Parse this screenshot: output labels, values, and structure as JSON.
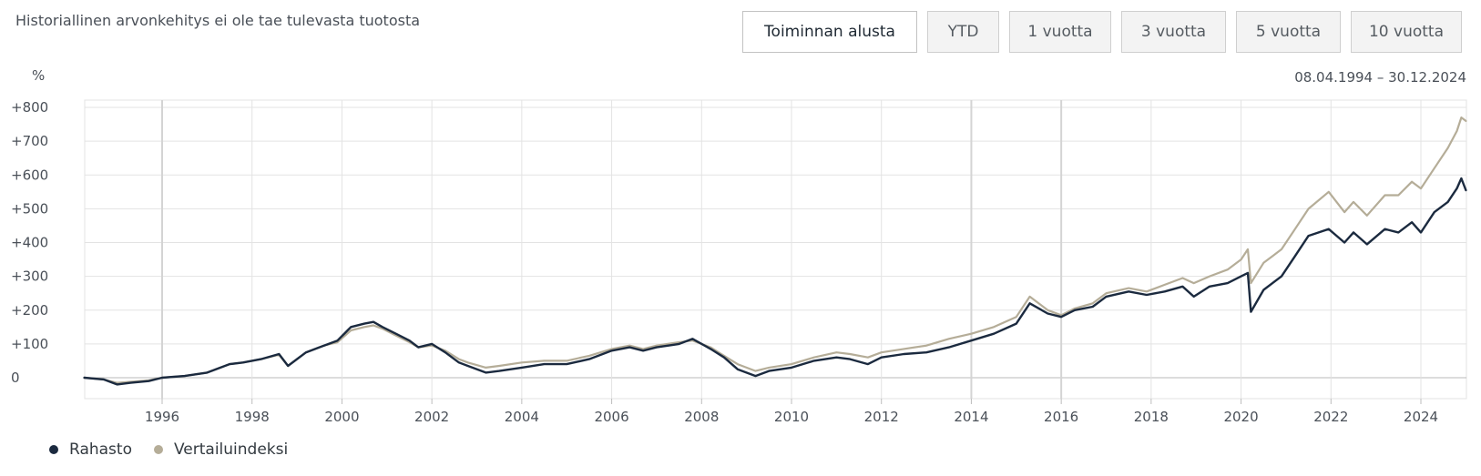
{
  "header": {
    "disclaimer": "Historiallinen arvonkehitys ei ole tae tulevasta tuotosta",
    "unit": "%",
    "period": "08.04.1994 – 30.12.2024"
  },
  "range_buttons": [
    {
      "label": "Toiminnan alusta",
      "active": true
    },
    {
      "label": "YTD",
      "active": false
    },
    {
      "label": "1 vuotta",
      "active": false
    },
    {
      "label": "3 vuotta",
      "active": false
    },
    {
      "label": "5 vuotta",
      "active": false
    },
    {
      "label": "10 vuotta",
      "active": false
    }
  ],
  "legend": [
    {
      "label": "Rahasto",
      "color": "#1b2a3f"
    },
    {
      "label": "Vertailuindeksi",
      "color": "#b5ad98"
    }
  ],
  "chart_data": {
    "type": "line",
    "title": "",
    "xlabel": "",
    "ylabel": "%",
    "xlim": [
      1994.27,
      2025.0
    ],
    "ylim": [
      -60,
      830
    ],
    "y_ticks": [
      0,
      100,
      200,
      300,
      400,
      500,
      600,
      700,
      800
    ],
    "y_tick_labels": [
      "0",
      "+100",
      "+200",
      "+300",
      "+400",
      "+500",
      "+600",
      "+700",
      "+800"
    ],
    "x_ticks": [
      1996,
      1998,
      2000,
      2002,
      2004,
      2006,
      2008,
      2010,
      2012,
      2014,
      2016,
      2018,
      2020,
      2022,
      2024
    ],
    "x_tick_labels": [
      "1996",
      "1998",
      "2000",
      "2002",
      "2004",
      "2006",
      "2008",
      "2010",
      "2012",
      "2014",
      "2016",
      "2018",
      "2020",
      "2022",
      "2024"
    ],
    "grid": true,
    "legend_position": "bottom-left",
    "series": [
      {
        "name": "Rahasto",
        "color": "#1b2a3f",
        "x": [
          1994.27,
          1994.7,
          1995.0,
          1995.3,
          1995.7,
          1996.0,
          1996.5,
          1997.0,
          1997.5,
          1997.8,
          1998.2,
          1998.6,
          1998.8,
          1999.2,
          1999.6,
          1999.9,
          2000.2,
          2000.5,
          2000.7,
          2000.9,
          2001.2,
          2001.5,
          2001.7,
          2002.0,
          2002.3,
          2002.6,
          2002.8,
          2003.2,
          2003.5,
          2004.0,
          2004.5,
          2005.0,
          2005.5,
          2006.0,
          2006.4,
          2006.7,
          2007.0,
          2007.5,
          2007.8,
          2008.2,
          2008.5,
          2008.8,
          2009.2,
          2009.5,
          2010.0,
          2010.5,
          2011.0,
          2011.3,
          2011.7,
          2012.0,
          2012.5,
          2013.0,
          2013.5,
          2014.0,
          2014.5,
          2015.0,
          2015.3,
          2015.7,
          2016.0,
          2016.3,
          2016.7,
          2017.0,
          2017.5,
          2017.9,
          2018.3,
          2018.7,
          2018.95,
          2019.3,
          2019.7,
          2020.0,
          2020.15,
          2020.22,
          2020.5,
          2020.9,
          2021.2,
          2021.5,
          2021.95,
          2022.3,
          2022.5,
          2022.8,
          2023.2,
          2023.5,
          2023.8,
          2024.0,
          2024.3,
          2024.6,
          2024.8,
          2024.9,
          2025.0
        ],
        "values": [
          0,
          -5,
          -20,
          -15,
          -10,
          0,
          5,
          15,
          40,
          45,
          55,
          70,
          35,
          75,
          95,
          110,
          150,
          160,
          165,
          150,
          130,
          110,
          90,
          100,
          75,
          45,
          35,
          15,
          20,
          30,
          40,
          40,
          55,
          80,
          90,
          80,
          90,
          100,
          115,
          85,
          60,
          25,
          5,
          20,
          30,
          50,
          60,
          55,
          40,
          60,
          70,
          75,
          90,
          110,
          130,
          160,
          220,
          190,
          180,
          200,
          210,
          240,
          255,
          245,
          255,
          270,
          240,
          270,
          280,
          300,
          310,
          195,
          260,
          300,
          360,
          420,
          440,
          400,
          430,
          395,
          440,
          430,
          460,
          430,
          490,
          520,
          560,
          590,
          555
        ]
      },
      {
        "name": "Vertailuindeksi",
        "color": "#b5ad98",
        "x": [
          1994.27,
          1994.7,
          1995.0,
          1995.3,
          1995.7,
          1996.0,
          1996.5,
          1997.0,
          1997.5,
          1997.8,
          1998.2,
          1998.6,
          1998.8,
          1999.2,
          1999.6,
          1999.9,
          2000.2,
          2000.5,
          2000.7,
          2000.9,
          2001.2,
          2001.5,
          2001.7,
          2002.0,
          2002.3,
          2002.6,
          2002.8,
          2003.2,
          2003.5,
          2004.0,
          2004.5,
          2005.0,
          2005.5,
          2006.0,
          2006.4,
          2006.7,
          2007.0,
          2007.5,
          2007.8,
          2008.2,
          2008.5,
          2008.8,
          2009.2,
          2009.5,
          2010.0,
          2010.5,
          2011.0,
          2011.3,
          2011.7,
          2012.0,
          2012.5,
          2013.0,
          2013.5,
          2014.0,
          2014.5,
          2015.0,
          2015.3,
          2015.7,
          2016.0,
          2016.3,
          2016.7,
          2017.0,
          2017.5,
          2017.9,
          2018.3,
          2018.7,
          2018.95,
          2019.3,
          2019.7,
          2020.0,
          2020.15,
          2020.22,
          2020.5,
          2020.9,
          2021.2,
          2021.5,
          2021.95,
          2022.3,
          2022.5,
          2022.8,
          2023.2,
          2023.5,
          2023.8,
          2024.0,
          2024.3,
          2024.6,
          2024.8,
          2024.9,
          2025.0
        ],
        "values": [
          0,
          -5,
          -15,
          -12,
          -8,
          0,
          5,
          15,
          40,
          45,
          55,
          68,
          35,
          75,
          95,
          105,
          140,
          150,
          155,
          145,
          125,
          105,
          90,
          95,
          80,
          55,
          45,
          30,
          35,
          45,
          50,
          50,
          65,
          85,
          95,
          85,
          95,
          105,
          110,
          90,
          65,
          40,
          20,
          30,
          40,
          60,
          75,
          70,
          60,
          75,
          85,
          95,
          115,
          130,
          150,
          180,
          240,
          200,
          185,
          205,
          220,
          250,
          265,
          255,
          275,
          295,
          280,
          300,
          320,
          350,
          380,
          280,
          340,
          380,
          440,
          500,
          550,
          490,
          520,
          480,
          540,
          540,
          580,
          560,
          620,
          680,
          730,
          770,
          760
        ]
      }
    ]
  }
}
